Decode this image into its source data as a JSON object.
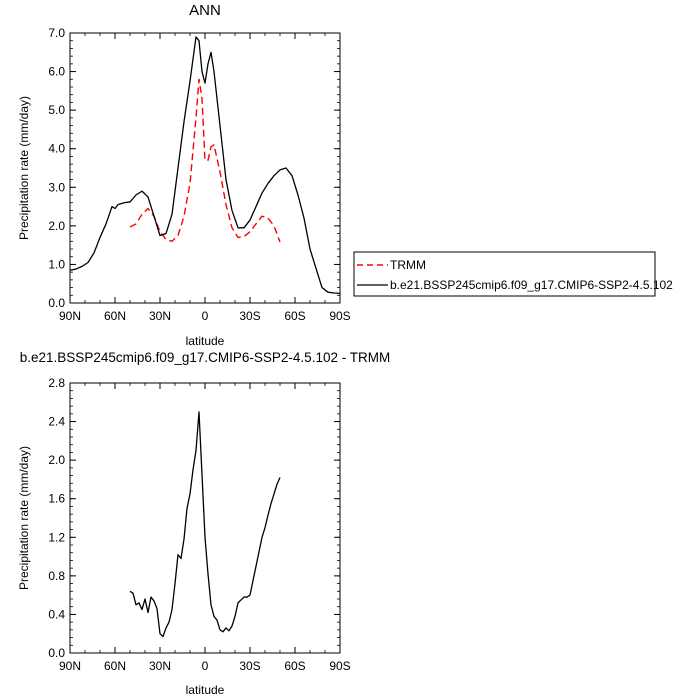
{
  "chart_data": [
    {
      "type": "line",
      "title": "ANN",
      "xlabel": "latitude",
      "ylabel": "Precipitation rate (mm/day)",
      "xlim": [
        90,
        -90
      ],
      "ylim": [
        0,
        7
      ],
      "x_ticks": [
        90,
        60,
        30,
        0,
        -30,
        -60,
        -90
      ],
      "x_tick_labels": [
        "90N",
        "60N",
        "30N",
        "0",
        "30S",
        "60S",
        "90S"
      ],
      "y_ticks": [
        0,
        1,
        2,
        3,
        4,
        5,
        6,
        7
      ],
      "y_tick_labels": [
        "0.0",
        "1.0",
        "2.0",
        "3.0",
        "4.0",
        "5.0",
        "6.0",
        "7.0"
      ],
      "legend": {
        "position": "right",
        "entries": [
          {
            "label": "TRMM",
            "color": "#ff0000",
            "dash": true
          },
          {
            "label": "b.e21.BSSP245cmip6.f09_g17.CMIP6-SSP2-4.5.102",
            "color": "#000000",
            "dash": false
          }
        ]
      },
      "series": [
        {
          "name": "TRMM",
          "color": "#ff0000",
          "dashed": true,
          "x": [
            50,
            46,
            42,
            38,
            34,
            30,
            26,
            22,
            18,
            14,
            10,
            6,
            4,
            2,
            0,
            -2,
            -4,
            -6,
            -10,
            -14,
            -18,
            -22,
            -26,
            -30,
            -34,
            -38,
            -42,
            -46,
            -50
          ],
          "y": [
            1.97,
            2.05,
            2.3,
            2.45,
            2.25,
            1.85,
            1.65,
            1.6,
            1.75,
            2.25,
            3.1,
            4.8,
            5.8,
            5.3,
            3.7,
            3.7,
            4.05,
            4.1,
            3.4,
            2.55,
            1.95,
            1.7,
            1.72,
            1.85,
            2.05,
            2.25,
            2.2,
            2.0,
            1.58
          ]
        },
        {
          "name": "b.e21.BSSP245cmip6.f09_g17.CMIP6-SSP2-4.5.102",
          "color": "#000000",
          "dashed": false,
          "x": [
            90,
            86,
            82,
            78,
            74,
            70,
            66,
            62,
            60,
            58,
            54,
            50,
            46,
            42,
            38,
            34,
            30,
            26,
            22,
            18,
            14,
            10,
            6,
            4,
            2,
            0,
            -2,
            -4,
            -6,
            -10,
            -14,
            -18,
            -22,
            -26,
            -30,
            -34,
            -38,
            -42,
            -46,
            -50,
            -54,
            -58,
            -62,
            -66,
            -70,
            -74,
            -78,
            -82,
            -86,
            -90
          ],
          "y": [
            0.85,
            0.88,
            0.95,
            1.05,
            1.3,
            1.7,
            2.05,
            2.5,
            2.45,
            2.55,
            2.6,
            2.62,
            2.8,
            2.9,
            2.75,
            2.25,
            1.75,
            1.8,
            2.3,
            3.5,
            4.7,
            5.75,
            6.9,
            6.8,
            6.0,
            5.7,
            6.2,
            6.5,
            6.0,
            4.6,
            3.2,
            2.4,
            1.95,
            1.95,
            2.15,
            2.5,
            2.85,
            3.1,
            3.3,
            3.45,
            3.5,
            3.3,
            2.8,
            2.2,
            1.4,
            0.9,
            0.4,
            0.28,
            0.26,
            0.25
          ]
        }
      ]
    },
    {
      "type": "line",
      "title": "b.e21.BSSP245cmip6.f09_g17.CMIP6-SSP2-4.5.102 - TRMM",
      "xlabel": "latitude",
      "ylabel": "Precipitation rate (mm/day)",
      "xlim": [
        90,
        -90
      ],
      "ylim": [
        0,
        2.8
      ],
      "x_ticks": [
        90,
        60,
        30,
        0,
        -30,
        -60,
        -90
      ],
      "x_tick_labels": [
        "90N",
        "60N",
        "30N",
        "0",
        "30S",
        "60S",
        "90S"
      ],
      "y_ticks": [
        0,
        0.4,
        0.8,
        1.2,
        1.6,
        2.0,
        2.4,
        2.8
      ],
      "y_tick_labels": [
        "0.0",
        "0.4",
        "0.8",
        "1.2",
        "1.6",
        "2.0",
        "2.4",
        "2.8"
      ],
      "series": [
        {
          "name": "",
          "color": "#000000",
          "dashed": false,
          "x": [
            50,
            48,
            46,
            44,
            42,
            40,
            38,
            36,
            34,
            32,
            30,
            28,
            26,
            24,
            22,
            20,
            18,
            16,
            14,
            12,
            10,
            8,
            6,
            4,
            2,
            0,
            -2,
            -4,
            -6,
            -8,
            -10,
            -12,
            -14,
            -16,
            -18,
            -20,
            -22,
            -24,
            -26,
            -28,
            -30,
            -32,
            -34,
            -36,
            -38,
            -40,
            -42,
            -44,
            -46,
            -48,
            -50
          ],
          "y": [
            0.64,
            0.62,
            0.5,
            0.52,
            0.45,
            0.56,
            0.42,
            0.58,
            0.54,
            0.46,
            0.2,
            0.17,
            0.26,
            0.32,
            0.45,
            0.72,
            1.02,
            0.98,
            1.18,
            1.5,
            1.65,
            1.9,
            2.1,
            2.5,
            1.85,
            1.2,
            0.82,
            0.5,
            0.38,
            0.34,
            0.24,
            0.22,
            0.26,
            0.23,
            0.28,
            0.38,
            0.52,
            0.55,
            0.58,
            0.58,
            0.6,
            0.75,
            0.9,
            1.05,
            1.2,
            1.3,
            1.43,
            1.55,
            1.65,
            1.75,
            1.82
          ]
        }
      ]
    }
  ]
}
